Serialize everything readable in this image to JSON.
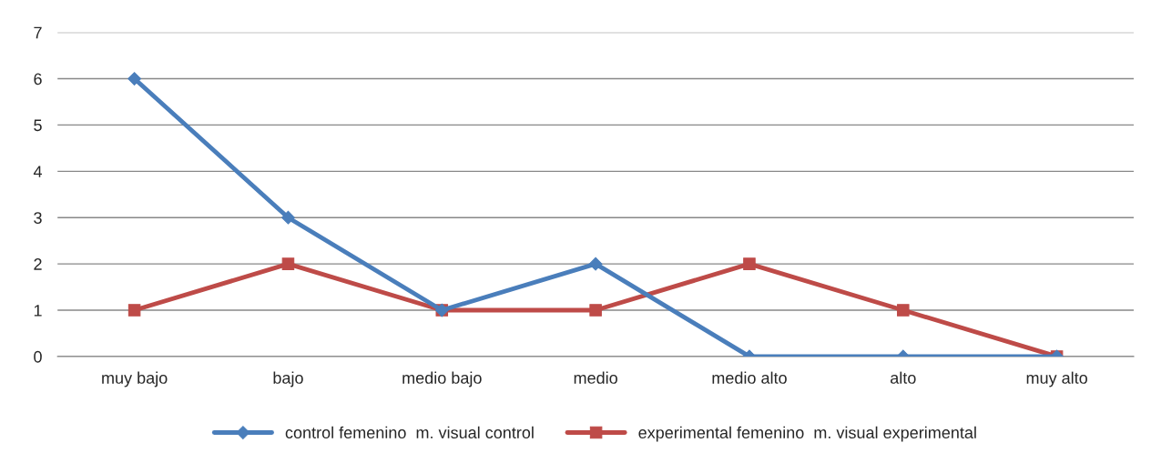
{
  "chart_data": {
    "type": "line",
    "categories": [
      "muy bajo",
      "bajo",
      "medio bajo",
      "medio",
      "medio alto",
      "alto",
      "muy alto"
    ],
    "series": [
      {
        "name": "control femenino  m. visual control",
        "color": "#4a7ebb",
        "marker": "diamond",
        "values": [
          6,
          3,
          1,
          2,
          0,
          0,
          0
        ]
      },
      {
        "name": "experimental femenino  m. visual experimental",
        "color": "#be4b48",
        "marker": "square",
        "values": [
          1,
          2,
          1,
          1,
          2,
          1,
          0
        ]
      }
    ],
    "ylim": [
      0,
      7
    ],
    "yticks": [
      0,
      1,
      2,
      3,
      4,
      5,
      6,
      7
    ],
    "grid": "y",
    "legend": "bottom",
    "line_style": "solid"
  }
}
